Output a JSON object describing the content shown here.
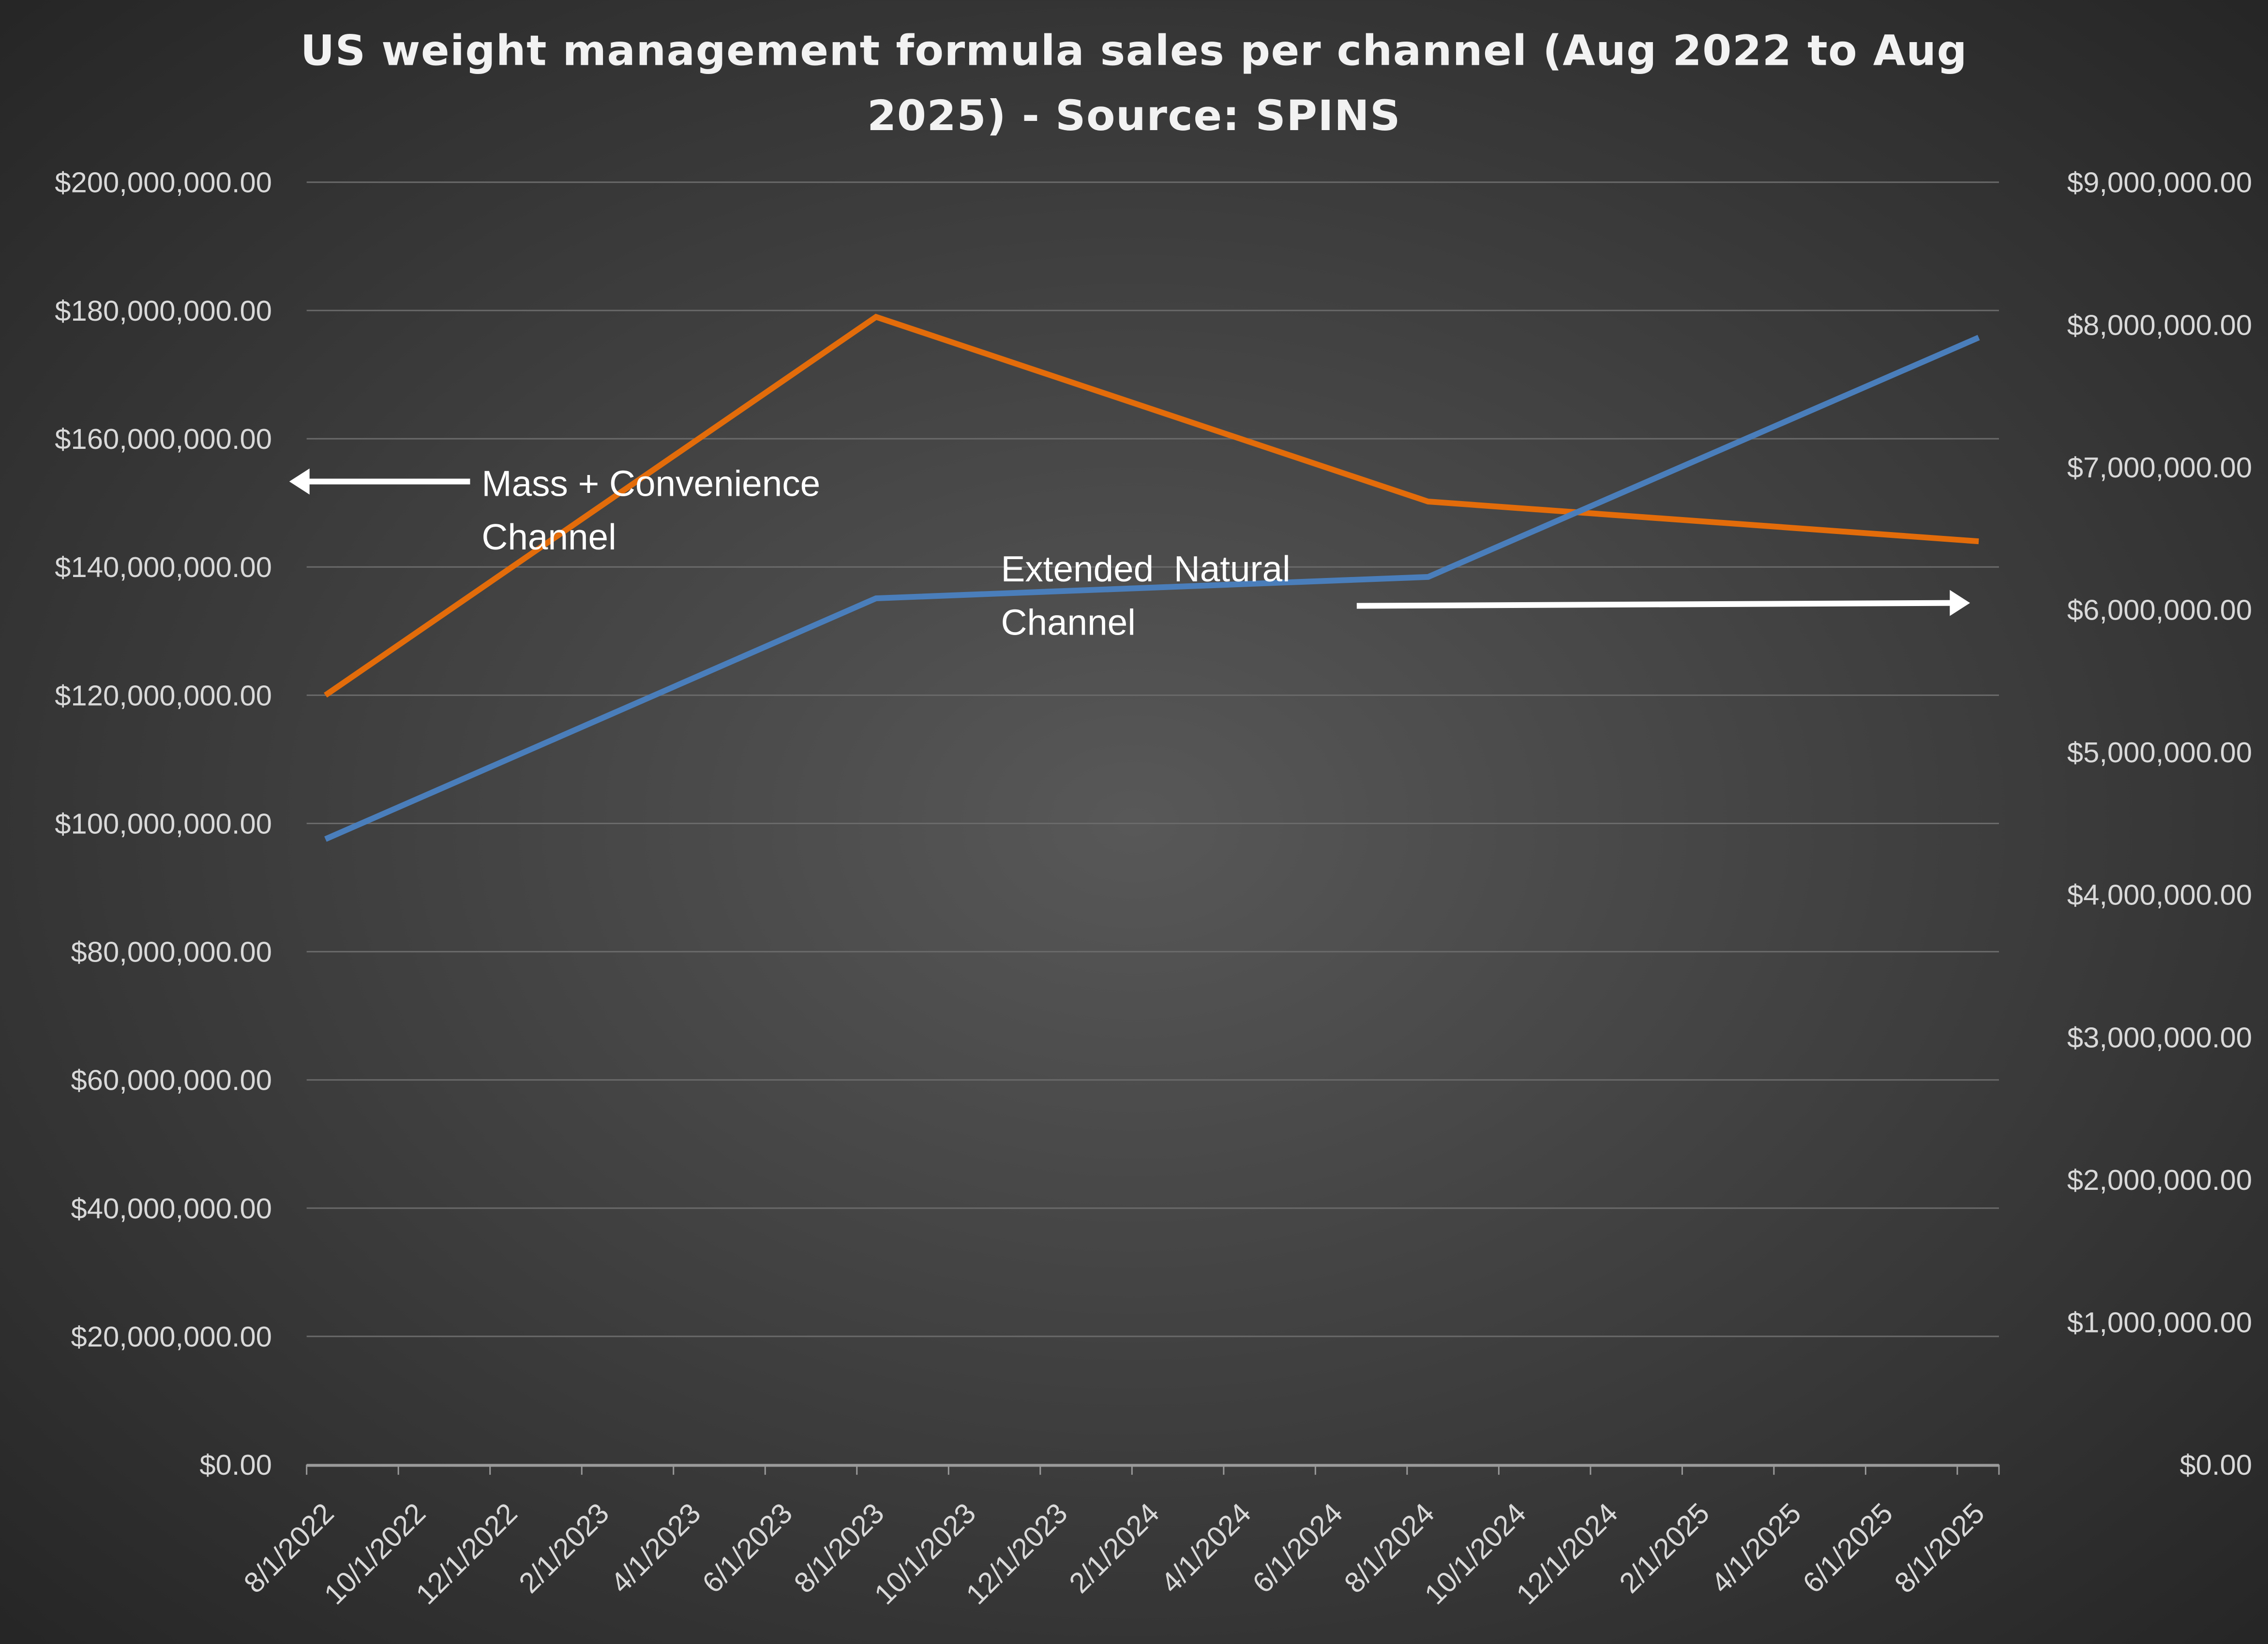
{
  "chart_data": {
    "type": "line",
    "title_lines": [
      "US weight management formula sales per channel (Aug 2022 to Aug",
      "2025)  - Source: SPINS"
    ],
    "x_tick_labels": [
      "8/1/2022",
      "10/1/2022",
      "12/1/2022",
      "2/1/2023",
      "4/1/2023",
      "6/1/2023",
      "8/1/2023",
      "10/1/2023",
      "12/1/2023",
      "2/1/2024",
      "4/1/2024",
      "6/1/2024",
      "8/1/2024",
      "10/1/2024",
      "12/1/2024",
      "2/1/2025",
      "4/1/2025",
      "6/1/2025",
      "8/1/2025"
    ],
    "x": [
      "2022-08-01",
      "2023-08-01",
      "2024-08-01",
      "2025-08-01"
    ],
    "y_left": {
      "range": [
        0,
        200000000
      ],
      "tick_labels": [
        "$0.00",
        "$20,000,000.00",
        "$40,000,000.00",
        "$60,000,000.00",
        "$80,000,000.00",
        "$100,000,000.00",
        "$120,000,000.00",
        "$140,000,000.00",
        "$160,000,000.00",
        "$180,000,000.00",
        "$200,000,000.00"
      ]
    },
    "y_right": {
      "range": [
        0,
        9000000
      ],
      "tick_labels": [
        "$0.00",
        "$1,000,000.00",
        "$2,000,000.00",
        "$3,000,000.00",
        "$4,000,000.00",
        "$5,000,000.00",
        "$6,000,000.00",
        "$7,000,000.00",
        "$8,000,000.00",
        "$9,000,000.00"
      ]
    },
    "grid": true,
    "legend": "none",
    "series": [
      {
        "axis": "left",
        "color": "#e36c0a",
        "values": [
          120000000,
          179000000,
          150200000,
          144000000
        ]
      },
      {
        "axis": "right",
        "color": "#4a7ebb",
        "values": [
          4390000,
          6080000,
          6230000,
          7910000
        ]
      }
    ],
    "annotations": [
      {
        "lines": [
          "Mass + Convenience",
          "Channel"
        ],
        "arrow": "left"
      },
      {
        "lines": [
          "Extended  Natural",
          "Channel"
        ],
        "arrow": "right"
      }
    ]
  }
}
